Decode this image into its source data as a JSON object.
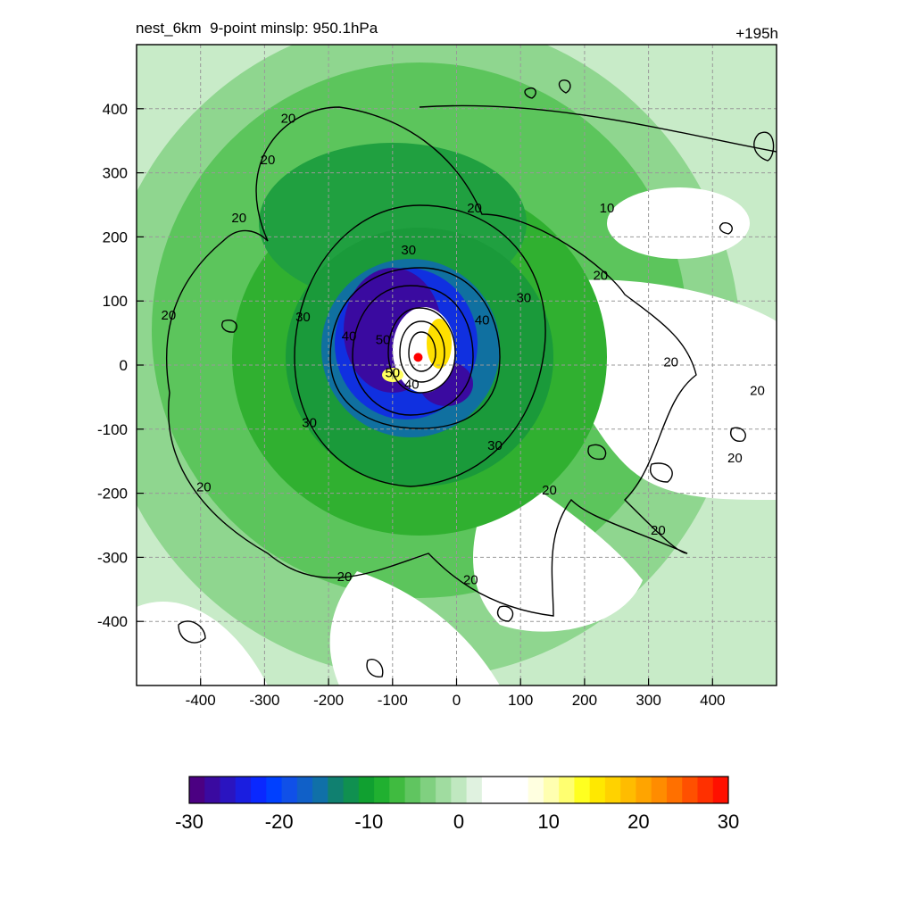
{
  "header": {
    "left_title": "nest_6km  9-point minslp: 950.1hPa",
    "right_title": "+195h"
  },
  "chart_data": {
    "type": "heatmap",
    "title": "nest_6km  9-point minslp: 950.1hPa",
    "forecast_hour": "+195h",
    "x_ticks": [
      -400,
      -300,
      -200,
      -100,
      0,
      100,
      200,
      300,
      400
    ],
    "y_ticks": [
      400,
      300,
      200,
      100,
      0,
      -100,
      -200,
      -300,
      -400
    ],
    "xlim": [
      -500,
      500
    ],
    "ylim": [
      -500,
      500
    ],
    "grid": true,
    "center_marker": {
      "x": -60,
      "y": 12,
      "color": "#ff0000"
    },
    "colorbar": {
      "ticks": [
        -30,
        -20,
        -10,
        0,
        10,
        20,
        30
      ],
      "range": [
        -30,
        30
      ],
      "colors": [
        "#4b0082",
        "#3a0aa0",
        "#2a14c0",
        "#1a1ee0",
        "#0a28ff",
        "#0040ff",
        "#1050e8",
        "#1060c8",
        "#1070a8",
        "#108070",
        "#109050",
        "#10a030",
        "#20b030",
        "#40bb40",
        "#60c560",
        "#80d080",
        "#a0dca0",
        "#c0e8c0",
        "#e0f2e0",
        "#ffffff",
        "#ffffff",
        "#ffffff",
        "#ffffe0",
        "#ffffb0",
        "#ffff70",
        "#ffff20",
        "#ffe800",
        "#ffd200",
        "#ffbc00",
        "#ffa400",
        "#ff8c00",
        "#ff7000",
        "#ff5000",
        "#ff3000",
        "#ff1000"
      ]
    },
    "contour_labels": [
      {
        "text": "20",
        "x": -263,
        "y": 385
      },
      {
        "text": "20",
        "x": -295,
        "y": 320
      },
      {
        "text": "20",
        "x": -340,
        "y": 230
      },
      {
        "text": "20",
        "x": 28,
        "y": 245
      },
      {
        "text": "10",
        "x": 235,
        "y": 245
      },
      {
        "text": "20",
        "x": 225,
        "y": 140
      },
      {
        "text": "30",
        "x": -75,
        "y": 180
      },
      {
        "text": "30",
        "x": 105,
        "y": 105
      },
      {
        "text": "30",
        "x": -240,
        "y": 75
      },
      {
        "text": "40",
        "x": -168,
        "y": 45
      },
      {
        "text": "50",
        "x": -115,
        "y": 40
      },
      {
        "text": "40",
        "x": 40,
        "y": 70
      },
      {
        "text": "40",
        "x": -70,
        "y": -30
      },
      {
        "text": "50",
        "x": -100,
        "y": -12
      },
      {
        "text": "20",
        "x": -450,
        "y": 78
      },
      {
        "text": "30",
        "x": -230,
        "y": -90
      },
      {
        "text": "30",
        "x": 60,
        "y": -125
      },
      {
        "text": "20",
        "x": 335,
        "y": 5
      },
      {
        "text": "20",
        "x": 470,
        "y": -40
      },
      {
        "text": "20",
        "x": 435,
        "y": -145
      },
      {
        "text": "20",
        "x": -395,
        "y": -190
      },
      {
        "text": "20",
        "x": 145,
        "y": -195
      },
      {
        "text": "20",
        "x": 315,
        "y": -258
      },
      {
        "text": "20",
        "x": -175,
        "y": -330
      },
      {
        "text": "20",
        "x": 22,
        "y": -335
      }
    ]
  }
}
